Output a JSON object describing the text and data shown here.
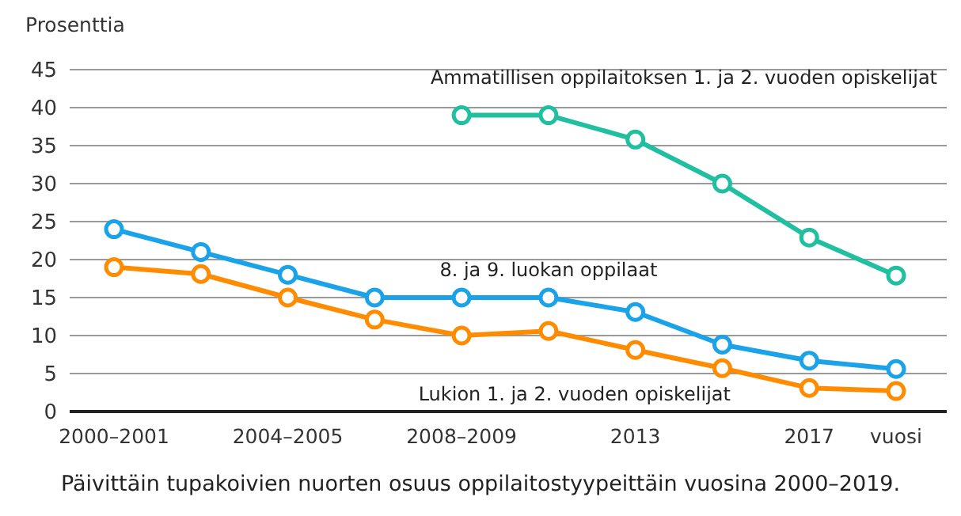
{
  "chart_data": {
    "type": "line",
    "title": "Päivittäin tupakoivien nuorten osuus oppilaitostyypeittäin vuosina 2000–2019.",
    "ylabel": "Prosenttia",
    "xlabel": "vuosi",
    "categories": [
      "2000–2001",
      null,
      "2004–2005",
      null,
      "2008–2009",
      null,
      "2013",
      null,
      "2017",
      null
    ],
    "series": [
      {
        "name": "Ammatillisen oppilaitoksen 1. ja 2. vuoden opiskelijat",
        "color": "#20bf9f",
        "values": [
          null,
          null,
          null,
          null,
          39,
          39,
          35.8,
          30,
          22.9,
          17.9
        ]
      },
      {
        "name": "8. ja 9. luokan oppilaat",
        "color": "#1aa3e8",
        "values": [
          24,
          21,
          18,
          15,
          15,
          15,
          13.1,
          8.8,
          6.7,
          5.6
        ]
      },
      {
        "name": "Lukion 1. ja 2. vuoden opiskelijat",
        "color": "#ff8c00",
        "values": [
          19,
          18.1,
          15,
          12.1,
          10,
          10.6,
          8.1,
          5.7,
          3.1,
          2.7
        ]
      }
    ],
    "ylim": [
      0,
      45
    ],
    "yticks": [
      0,
      5,
      10,
      15,
      20,
      25,
      30,
      35,
      40,
      45
    ],
    "grid": "y",
    "legend": false,
    "marker": "circle",
    "line_style": "solid"
  }
}
